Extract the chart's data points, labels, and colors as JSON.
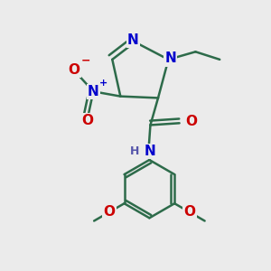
{
  "background_color": "#ebebeb",
  "bond_color": "#2d6b4a",
  "bond_width": 1.8,
  "atom_colors": {
    "N": "#0000cc",
    "O": "#cc0000",
    "C": "#2d6b4a",
    "H": "#5555aa"
  },
  "font_size_atom": 11,
  "font_size_small": 9,
  "figsize": [
    3.0,
    3.0
  ],
  "dpi": 100
}
